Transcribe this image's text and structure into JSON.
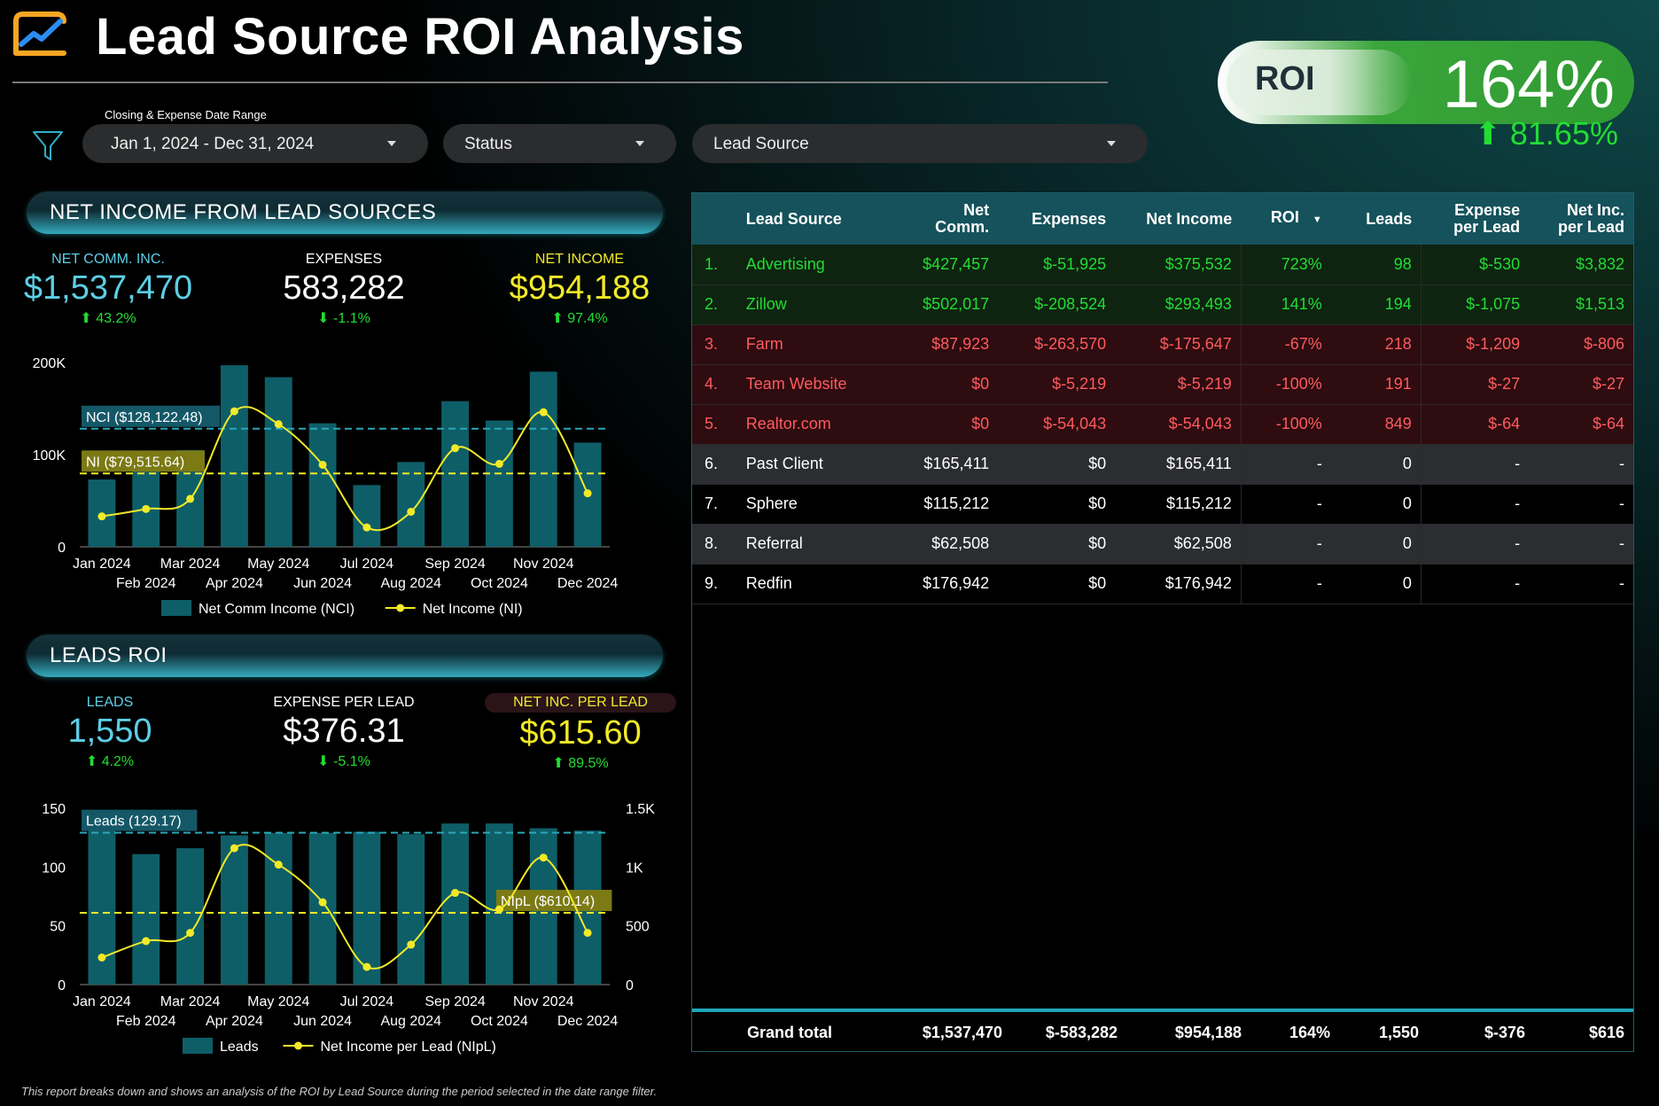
{
  "header": {
    "title": "Lead Source ROI Analysis",
    "logo_icon": "line-chart-logo-icon"
  },
  "roi": {
    "label": "ROI",
    "value": "164%",
    "delta": "81.65%"
  },
  "filters": {
    "date_label": "Closing & Expense Date Range",
    "date_value": "Jan 1, 2024 - Dec 31, 2024",
    "status": "Status",
    "lead_source": "Lead Source"
  },
  "net_income_section": {
    "title": "NET INCOME FROM LEAD SOURCES",
    "kpis": [
      {
        "label": "NET COMM. INC.",
        "value": "$1,537,470",
        "delta": "43.2%",
        "dir": "up"
      },
      {
        "label": "EXPENSES",
        "value": "583,282",
        "delta": "-1.1%",
        "dir": "down"
      },
      {
        "label": "NET INCOME",
        "value": "$954,188",
        "delta": "97.4%",
        "dir": "up"
      }
    ]
  },
  "leads_section": {
    "title": "LEADS ROI",
    "kpis": [
      {
        "label": "LEADS",
        "value": "1,550",
        "delta": "4.2%",
        "dir": "up"
      },
      {
        "label": "EXPENSE PER LEAD",
        "value": "$376.31",
        "delta": "-5.1%",
        "dir": "down"
      },
      {
        "label": "NET INC. PER LEAD",
        "value": "$615.60",
        "delta": "89.5%",
        "dir": "up"
      }
    ]
  },
  "chart_data": [
    {
      "type": "bar",
      "categories": [
        "Jan 2024",
        "Feb 2024",
        "Mar 2024",
        "Apr 2024",
        "May 2024",
        "Jun 2024",
        "Jul 2024",
        "Aug 2024",
        "Sep 2024",
        "Oct 2024",
        "Nov 2024",
        "Dec 2024"
      ],
      "series": [
        {
          "name": "Net Comm Income (NCI)",
          "type": "bar",
          "values": [
            73000,
            92000,
            105000,
            197000,
            184000,
            134000,
            67000,
            92000,
            158000,
            137000,
            190000,
            113000
          ]
        },
        {
          "name": "Net Income (NI)",
          "type": "line",
          "values": [
            33000,
            41000,
            52000,
            147000,
            133000,
            89000,
            21000,
            38000,
            107000,
            90000,
            146000,
            58000
          ]
        }
      ],
      "ylim": [
        0,
        200000
      ],
      "yticks": [
        "0",
        "100K",
        "200K"
      ],
      "reference_lines": [
        {
          "label": "NCI ($128,122.48)",
          "value": 128122.48
        },
        {
          "label": "NI ($79,515.64)",
          "value": 79515.64
        }
      ],
      "legend": "bottom"
    },
    {
      "type": "bar",
      "categories": [
        "Jan 2024",
        "Feb 2024",
        "Mar 2024",
        "Apr 2024",
        "May 2024",
        "Jun 2024",
        "Jul 2024",
        "Aug 2024",
        "Sep 2024",
        "Oct 2024",
        "Nov 2024",
        "Dec 2024"
      ],
      "series": [
        {
          "name": "Leads",
          "type": "bar",
          "values": [
            132,
            111,
            116,
            127,
            129,
            129,
            130,
            128,
            137,
            137,
            133,
            131
          ]
        },
        {
          "name": "Net Income per Lead (NIpL)",
          "type": "line",
          "axis": "right",
          "values": [
            230,
            370,
            440,
            1160,
            1020,
            700,
            150,
            340,
            780,
            640,
            1080,
            440
          ]
        }
      ],
      "ylim": [
        0,
        150
      ],
      "y2lim": [
        0,
        1500
      ],
      "yticks": [
        "0",
        "50",
        "100",
        "150"
      ],
      "y2ticks": [
        "0",
        "500",
        "1K",
        "1.5K"
      ],
      "reference_lines": [
        {
          "label": "Leads (129.17)",
          "value": 129.17,
          "axis": "left"
        },
        {
          "label": "NIpL ($610.14)",
          "value": 610.14,
          "axis": "right"
        }
      ],
      "legend": "bottom"
    }
  ],
  "table": {
    "headers": [
      "Lead Source",
      "Net Comm.",
      "Expenses",
      "Net Income",
      "ROI",
      "Leads",
      "Expense per Lead",
      "Net Inc. per Lead"
    ],
    "rows": [
      {
        "n": "1.",
        "source": "Advertising",
        "nci": "$427,457",
        "exp": "$-51,925",
        "ni": "$375,532",
        "roi": "723%",
        "leads": "98",
        "epl": "$-530",
        "nipl": "$3,832",
        "tone": "pos"
      },
      {
        "n": "2.",
        "source": "Zillow",
        "nci": "$502,017",
        "exp": "$-208,524",
        "ni": "$293,493",
        "roi": "141%",
        "leads": "194",
        "epl": "$-1,075",
        "nipl": "$1,513",
        "tone": "pos"
      },
      {
        "n": "3.",
        "source": "Farm",
        "nci": "$87,923",
        "exp": "$-263,570",
        "ni": "$-175,647",
        "roi": "-67%",
        "leads": "218",
        "epl": "$-1,209",
        "nipl": "$-806",
        "tone": "neg"
      },
      {
        "n": "4.",
        "source": "Team Website",
        "nci": "$0",
        "exp": "$-5,219",
        "ni": "$-5,219",
        "roi": "-100%",
        "leads": "191",
        "epl": "$-27",
        "nipl": "$-27",
        "tone": "neg"
      },
      {
        "n": "5.",
        "source": "Realtor.com",
        "nci": "$0",
        "exp": "$-54,043",
        "ni": "$-54,043",
        "roi": "-100%",
        "leads": "849",
        "epl": "$-64",
        "nipl": "$-64",
        "tone": "neg"
      },
      {
        "n": "6.",
        "source": "Past Client",
        "nci": "$165,411",
        "exp": "$0",
        "ni": "$165,411",
        "roi": "-",
        "leads": "0",
        "epl": "-",
        "nipl": "-",
        "tone": "neu1"
      },
      {
        "n": "7.",
        "source": "Sphere",
        "nci": "$115,212",
        "exp": "$0",
        "ni": "$115,212",
        "roi": "-",
        "leads": "0",
        "epl": "-",
        "nipl": "-",
        "tone": "neu2"
      },
      {
        "n": "8.",
        "source": "Referral",
        "nci": "$62,508",
        "exp": "$0",
        "ni": "$62,508",
        "roi": "-",
        "leads": "0",
        "epl": "-",
        "nipl": "-",
        "tone": "neu1"
      },
      {
        "n": "9.",
        "source": "Redfin",
        "nci": "$176,942",
        "exp": "$0",
        "ni": "$176,942",
        "roi": "-",
        "leads": "0",
        "epl": "-",
        "nipl": "-",
        "tone": "neu2"
      }
    ],
    "grand_total": {
      "label": "Grand total",
      "nci": "$1,537,470",
      "exp": "$-583,282",
      "ni": "$954,188",
      "roi": "164%",
      "leads": "1,550",
      "epl": "$-376",
      "nipl": "$616"
    }
  },
  "footnote": "This report breaks down and shows an analysis of the ROI by Lead Source during the period selected in the date range filter.",
  "colors": {
    "bar": "#0e5e68",
    "line": "#f2ea28",
    "refline_nci": "#2aa7b8",
    "positive": "#22dd33",
    "negative": "#ff5a5e",
    "accent": "#1fa6b8"
  }
}
